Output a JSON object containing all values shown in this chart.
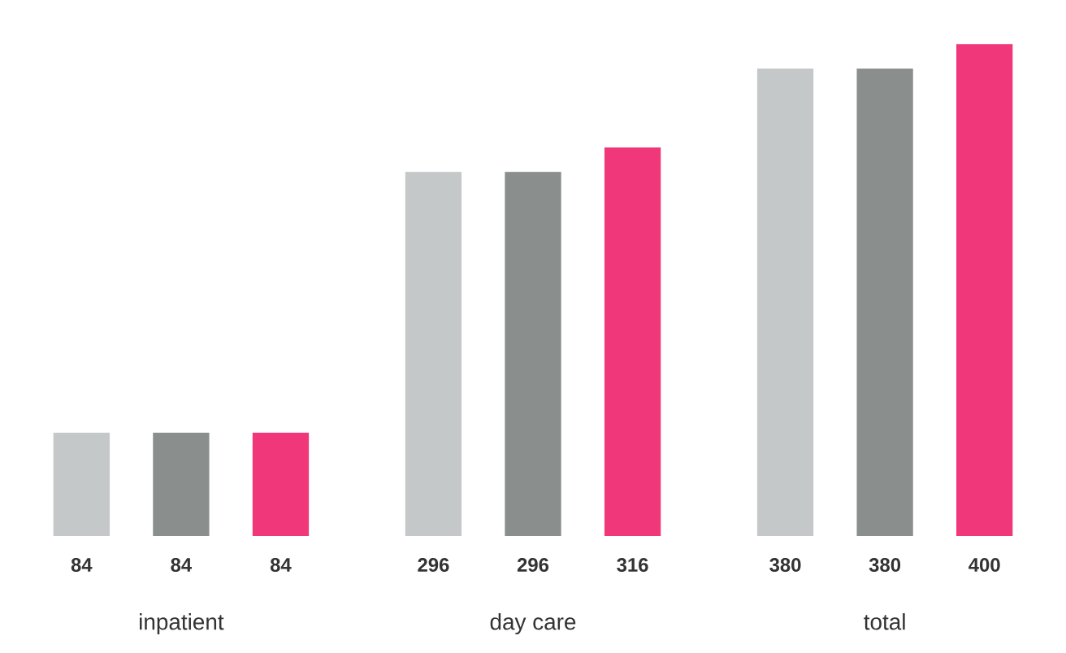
{
  "chart_data": {
    "type": "bar",
    "categories": [
      "inpatient",
      "day care",
      "total"
    ],
    "series": [
      {
        "color": "#c4c8c9",
        "values": [
          84,
          296,
          380
        ]
      },
      {
        "color": "#8a8f8e",
        "values": [
          84,
          296,
          380
        ]
      },
      {
        "color": "#f0377a",
        "values": [
          84,
          316,
          400
        ]
      }
    ],
    "data_labels": true
  }
}
